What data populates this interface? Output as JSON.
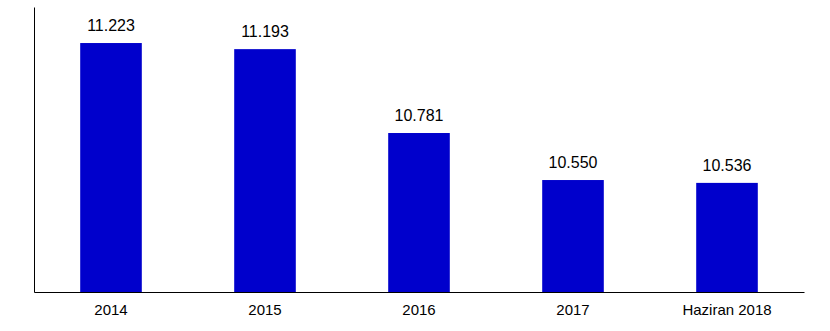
{
  "chart_data": {
    "type": "bar",
    "categories": [
      "2014",
      "2015",
      "2016",
      "2017",
      "Haziran 2018"
    ],
    "values": [
      11223,
      11193,
      10781,
      10550,
      10536
    ],
    "value_labels": [
      "11.223",
      "11.193",
      "10.781",
      "10.550",
      "10.536"
    ],
    "color": "#0000cc",
    "ylim": [
      10000,
      11400
    ],
    "yticks": [],
    "grid": false,
    "data_labels": true,
    "tick_labels": "x"
  }
}
